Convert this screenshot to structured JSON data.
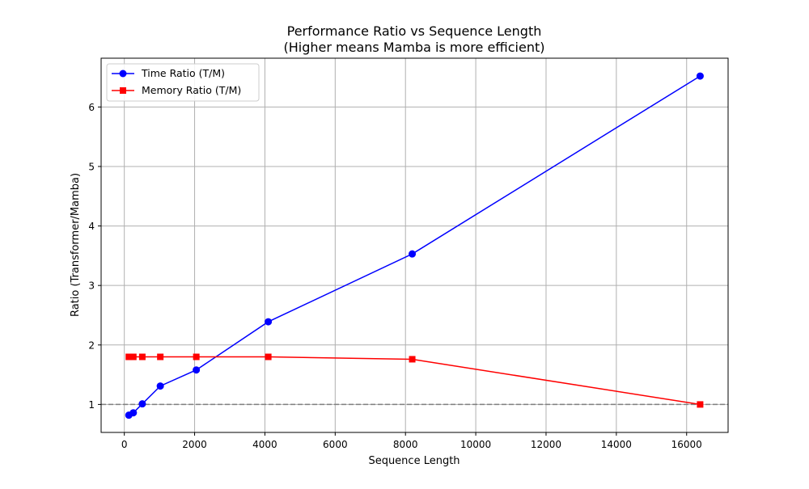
{
  "chart_data": {
    "type": "line",
    "title": "Performance Ratio vs Sequence Length",
    "subtitle": "(Higher means Mamba is more efficient)",
    "xlabel": "Sequence Length",
    "ylabel": "Ratio (Transformer/Mamba)",
    "xlim": [
      -660,
      17180
    ],
    "ylim": [
      0.53,
      6.82
    ],
    "xticks": [
      0,
      2000,
      4000,
      6000,
      8000,
      10000,
      12000,
      14000,
      16000
    ],
    "xtick_labels": [
      "0",
      "2000",
      "4000",
      "6000",
      "8000",
      "10000",
      "12000",
      "14000",
      "16000"
    ],
    "yticks": [
      1,
      2,
      3,
      4,
      5,
      6
    ],
    "ytick_labels": [
      "1",
      "2",
      "3",
      "4",
      "5",
      "6"
    ],
    "grid": true,
    "legend_position": "top-left",
    "reference_line": {
      "y": 1,
      "style": "dashed",
      "color": "#808080"
    },
    "x": [
      128,
      256,
      512,
      1024,
      2048,
      4096,
      8192,
      16384
    ],
    "series": [
      {
        "name": "Time Ratio (T/M)",
        "color": "#0000ff",
        "marker": "circle",
        "values": [
          0.82,
          0.86,
          1.01,
          1.31,
          1.58,
          2.39,
          3.53,
          6.52
        ]
      },
      {
        "name": "Memory Ratio (T/M)",
        "color": "#ff0000",
        "marker": "square",
        "values": [
          1.8,
          1.8,
          1.8,
          1.8,
          1.8,
          1.8,
          1.76,
          1.0
        ]
      }
    ]
  }
}
